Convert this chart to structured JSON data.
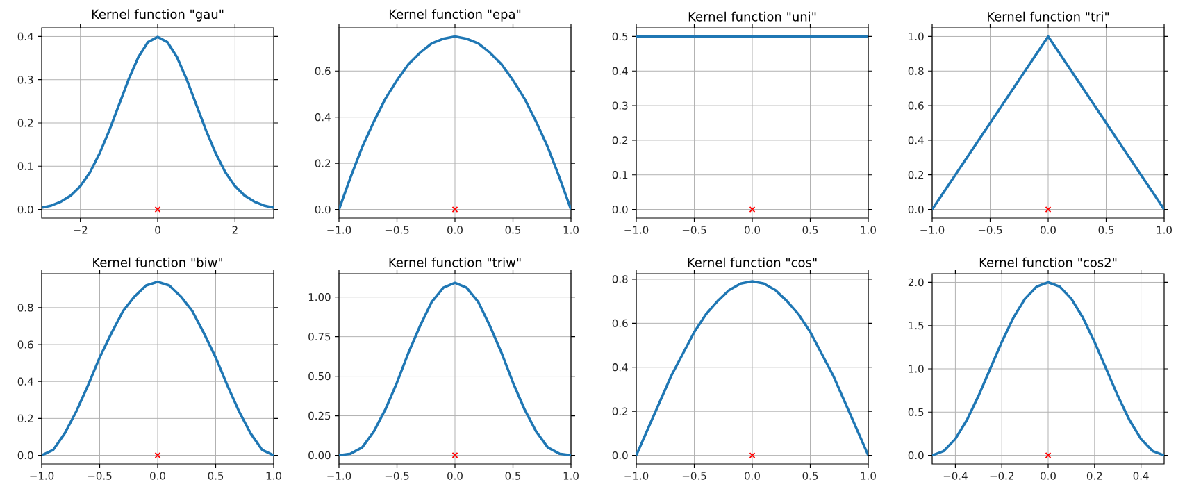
{
  "chart_data": [
    {
      "type": "line",
      "title": "Kernel function \"gau\"",
      "xlim": [
        -3,
        3
      ],
      "ylim": [
        -0.02,
        0.42
      ],
      "grid": true,
      "line_style": "solid",
      "xticks": [
        {
          "value": -2,
          "label": "−2"
        },
        {
          "value": 0,
          "label": "0"
        },
        {
          "value": 2,
          "label": "2"
        }
      ],
      "yticks": [
        {
          "value": 0,
          "label": "0.0"
        },
        {
          "value": 0.1,
          "label": "0.1"
        },
        {
          "value": 0.2,
          "label": "0.2"
        },
        {
          "value": 0.3,
          "label": "0.3"
        },
        {
          "value": 0.4,
          "label": "0.4"
        }
      ],
      "series": [
        {
          "color": "#1f77b4",
          "x": [
            -3,
            -2.75,
            -2.5,
            -2.25,
            -2,
            -1.75,
            -1.5,
            -1.25,
            -1,
            -0.75,
            -0.5,
            -0.25,
            0,
            0.25,
            0.5,
            0.75,
            1,
            1.25,
            1.5,
            1.75,
            2,
            2.25,
            2.5,
            2.75,
            3
          ],
          "values": [
            0.004,
            0.009,
            0.018,
            0.032,
            0.054,
            0.086,
            0.13,
            0.183,
            0.242,
            0.301,
            0.352,
            0.387,
            0.399,
            0.387,
            0.352,
            0.301,
            0.242,
            0.183,
            0.13,
            0.086,
            0.054,
            0.032,
            0.018,
            0.009,
            0.004
          ]
        },
        {
          "type": "scatter",
          "marker": "cross",
          "color": "#ff0000",
          "x": [
            0
          ],
          "values": [
            0
          ]
        }
      ]
    },
    {
      "type": "line",
      "title": "Kernel function \"epa\"",
      "xlim": [
        -1,
        1
      ],
      "ylim": [
        -0.0375,
        0.7875
      ],
      "grid": true,
      "line_style": "solid",
      "xticks": [
        {
          "value": -1,
          "label": "−1.0"
        },
        {
          "value": -0.5,
          "label": "−0.5"
        },
        {
          "value": 0,
          "label": "0.0"
        },
        {
          "value": 0.5,
          "label": "0.5"
        },
        {
          "value": 1,
          "label": "1.0"
        }
      ],
      "yticks": [
        {
          "value": 0,
          "label": "0.0"
        },
        {
          "value": 0.2,
          "label": "0.2"
        },
        {
          "value": 0.4,
          "label": "0.4"
        },
        {
          "value": 0.6,
          "label": "0.6"
        }
      ],
      "series": [
        {
          "color": "#1f77b4",
          "x": [
            -1,
            -0.9,
            -0.8,
            -0.7,
            -0.6,
            -0.5,
            -0.4,
            -0.3,
            -0.2,
            -0.1,
            0,
            0.1,
            0.2,
            0.3,
            0.4,
            0.5,
            0.6,
            0.7,
            0.8,
            0.9,
            1
          ],
          "values": [
            0,
            0.14,
            0.27,
            0.38,
            0.48,
            0.56,
            0.63,
            0.68,
            0.72,
            0.74,
            0.75,
            0.74,
            0.72,
            0.68,
            0.63,
            0.56,
            0.48,
            0.38,
            0.27,
            0.14,
            0
          ]
        },
        {
          "type": "scatter",
          "marker": "cross",
          "color": "#ff0000",
          "x": [
            0
          ],
          "values": [
            0
          ]
        }
      ]
    },
    {
      "type": "line",
      "title": "Kernel function \"uni\"",
      "xlim": [
        -1,
        1
      ],
      "ylim": [
        -0.025,
        0.525
      ],
      "grid": true,
      "line_style": "solid",
      "xticks": [
        {
          "value": -1,
          "label": "−1.0"
        },
        {
          "value": -0.5,
          "label": "−0.5"
        },
        {
          "value": 0,
          "label": "0.0"
        },
        {
          "value": 0.5,
          "label": "0.5"
        },
        {
          "value": 1,
          "label": "1.0"
        }
      ],
      "yticks": [
        {
          "value": 0,
          "label": "0.0"
        },
        {
          "value": 0.1,
          "label": "0.1"
        },
        {
          "value": 0.2,
          "label": "0.2"
        },
        {
          "value": 0.3,
          "label": "0.3"
        },
        {
          "value": 0.4,
          "label": "0.4"
        },
        {
          "value": 0.5,
          "label": "0.5"
        }
      ],
      "series": [
        {
          "color": "#1f77b4",
          "x": [
            -1,
            1
          ],
          "values": [
            0.5,
            0.5
          ]
        },
        {
          "type": "scatter",
          "marker": "cross",
          "color": "#ff0000",
          "x": [
            0
          ],
          "values": [
            0
          ]
        }
      ]
    },
    {
      "type": "line",
      "title": "Kernel function \"tri\"",
      "xlim": [
        -1,
        1
      ],
      "ylim": [
        -0.05,
        1.05
      ],
      "grid": true,
      "line_style": "solid",
      "xticks": [
        {
          "value": -1,
          "label": "−1.0"
        },
        {
          "value": -0.5,
          "label": "−0.5"
        },
        {
          "value": 0,
          "label": "0.0"
        },
        {
          "value": 0.5,
          "label": "0.5"
        },
        {
          "value": 1,
          "label": "1.0"
        }
      ],
      "yticks": [
        {
          "value": 0,
          "label": "0.0"
        },
        {
          "value": 0.2,
          "label": "0.2"
        },
        {
          "value": 0.4,
          "label": "0.4"
        },
        {
          "value": 0.6,
          "label": "0.6"
        },
        {
          "value": 0.8,
          "label": "0.8"
        },
        {
          "value": 1,
          "label": "1.0"
        }
      ],
      "series": [
        {
          "color": "#1f77b4",
          "x": [
            -1,
            0,
            1
          ],
          "values": [
            0,
            1,
            0
          ]
        },
        {
          "type": "scatter",
          "marker": "cross",
          "color": "#ff0000",
          "x": [
            0
          ],
          "values": [
            0
          ]
        }
      ]
    },
    {
      "type": "line",
      "title": "Kernel function \"biw\"",
      "xlim": [
        -1,
        1
      ],
      "ylim": [
        -0.047,
        0.984
      ],
      "grid": true,
      "line_style": "solid",
      "xticks": [
        {
          "value": -1,
          "label": "−1.0"
        },
        {
          "value": -0.5,
          "label": "−0.5"
        },
        {
          "value": 0,
          "label": "0.0"
        },
        {
          "value": 0.5,
          "label": "0.5"
        },
        {
          "value": 1,
          "label": "1.0"
        }
      ],
      "yticks": [
        {
          "value": 0,
          "label": "0.0"
        },
        {
          "value": 0.2,
          "label": "0.2"
        },
        {
          "value": 0.4,
          "label": "0.4"
        },
        {
          "value": 0.6,
          "label": "0.6"
        },
        {
          "value": 0.8,
          "label": "0.8"
        }
      ],
      "series": [
        {
          "color": "#1f77b4",
          "x": [
            -1,
            -0.9,
            -0.8,
            -0.7,
            -0.6,
            -0.5,
            -0.4,
            -0.3,
            -0.2,
            -0.1,
            0,
            0.1,
            0.2,
            0.3,
            0.4,
            0.5,
            0.6,
            0.7,
            0.8,
            0.9,
            1
          ],
          "values": [
            0,
            0.03,
            0.12,
            0.24,
            0.38,
            0.53,
            0.66,
            0.78,
            0.86,
            0.92,
            0.94,
            0.92,
            0.86,
            0.78,
            0.66,
            0.53,
            0.38,
            0.24,
            0.12,
            0.03,
            0
          ]
        },
        {
          "type": "scatter",
          "marker": "cross",
          "color": "#ff0000",
          "x": [
            0
          ],
          "values": [
            0
          ]
        }
      ]
    },
    {
      "type": "line",
      "title": "Kernel function \"triw\"",
      "xlim": [
        -1,
        1
      ],
      "ylim": [
        -0.055,
        1.148
      ],
      "grid": true,
      "line_style": "solid",
      "xticks": [
        {
          "value": -1,
          "label": "−1.0"
        },
        {
          "value": -0.5,
          "label": "−0.5"
        },
        {
          "value": 0,
          "label": "0.0"
        },
        {
          "value": 0.5,
          "label": "0.5"
        },
        {
          "value": 1,
          "label": "1.0"
        }
      ],
      "yticks": [
        {
          "value": 0,
          "label": "0.00"
        },
        {
          "value": 0.25,
          "label": "0.25"
        },
        {
          "value": 0.5,
          "label": "0.50"
        },
        {
          "value": 0.75,
          "label": "0.75"
        },
        {
          "value": 1,
          "label": "1.00"
        }
      ],
      "series": [
        {
          "color": "#1f77b4",
          "x": [
            -1,
            -0.9,
            -0.8,
            -0.7,
            -0.6,
            -0.5,
            -0.4,
            -0.3,
            -0.2,
            -0.1,
            0,
            0.1,
            0.2,
            0.3,
            0.4,
            0.5,
            0.6,
            0.7,
            0.8,
            0.9,
            1
          ],
          "values": [
            0,
            0.01,
            0.05,
            0.15,
            0.29,
            0.46,
            0.65,
            0.82,
            0.97,
            1.06,
            1.09,
            1.06,
            0.97,
            0.82,
            0.65,
            0.46,
            0.29,
            0.15,
            0.05,
            0.01,
            0
          ]
        },
        {
          "type": "scatter",
          "marker": "cross",
          "color": "#ff0000",
          "x": [
            0
          ],
          "values": [
            0
          ]
        }
      ]
    },
    {
      "type": "line",
      "title": "Kernel function \"cos\"",
      "xlim": [
        -1,
        1
      ],
      "ylim": [
        -0.039,
        0.825
      ],
      "grid": true,
      "line_style": "solid",
      "xticks": [
        {
          "value": -1,
          "label": "−1.0"
        },
        {
          "value": -0.5,
          "label": "−0.5"
        },
        {
          "value": 0,
          "label": "0.0"
        },
        {
          "value": 0.5,
          "label": "0.5"
        },
        {
          "value": 1,
          "label": "1.0"
        }
      ],
      "yticks": [
        {
          "value": 0,
          "label": "0.0"
        },
        {
          "value": 0.2,
          "label": "0.2"
        },
        {
          "value": 0.4,
          "label": "0.4"
        },
        {
          "value": 0.6,
          "label": "0.6"
        },
        {
          "value": 0.8,
          "label": "0.8"
        }
      ],
      "series": [
        {
          "color": "#1f77b4",
          "x": [
            -1,
            -0.9,
            -0.8,
            -0.7,
            -0.6,
            -0.5,
            -0.4,
            -0.3,
            -0.2,
            -0.1,
            0,
            0.1,
            0.2,
            0.3,
            0.4,
            0.5,
            0.6,
            0.7,
            0.8,
            0.9,
            1
          ],
          "values": [
            0,
            0.12,
            0.24,
            0.36,
            0.46,
            0.56,
            0.64,
            0.7,
            0.75,
            0.78,
            0.79,
            0.78,
            0.75,
            0.7,
            0.64,
            0.56,
            0.46,
            0.36,
            0.24,
            0.12,
            0
          ]
        },
        {
          "type": "scatter",
          "marker": "cross",
          "color": "#ff0000",
          "x": [
            0
          ],
          "values": [
            0
          ]
        }
      ]
    },
    {
      "type": "line",
      "title": "Kernel function \"cos2\"",
      "xlim": [
        -0.5,
        0.5
      ],
      "ylim": [
        -0.1,
        2.1
      ],
      "grid": true,
      "line_style": "solid",
      "xticks": [
        {
          "value": -0.4,
          "label": "−0.4"
        },
        {
          "value": -0.2,
          "label": "−0.2"
        },
        {
          "value": 0,
          "label": "0.0"
        },
        {
          "value": 0.2,
          "label": "0.2"
        },
        {
          "value": 0.4,
          "label": "0.4"
        }
      ],
      "yticks": [
        {
          "value": 0,
          "label": "0.0"
        },
        {
          "value": 0.5,
          "label": "0.5"
        },
        {
          "value": 1,
          "label": "1.0"
        },
        {
          "value": 1.5,
          "label": "1.5"
        },
        {
          "value": 2,
          "label": "2.0"
        }
      ],
      "series": [
        {
          "color": "#1f77b4",
          "x": [
            -0.5,
            -0.45,
            -0.4,
            -0.35,
            -0.3,
            -0.25,
            -0.2,
            -0.15,
            -0.1,
            -0.05,
            0,
            0.05,
            0.1,
            0.15,
            0.2,
            0.25,
            0.3,
            0.35,
            0.4,
            0.45,
            0.5
          ],
          "values": [
            0,
            0.05,
            0.19,
            0.41,
            0.69,
            1,
            1.31,
            1.59,
            1.81,
            1.95,
            2,
            1.95,
            1.81,
            1.59,
            1.31,
            1,
            0.69,
            0.41,
            0.19,
            0.05,
            0
          ]
        },
        {
          "type": "scatter",
          "marker": "cross",
          "color": "#ff0000",
          "x": [
            0
          ],
          "values": [
            0
          ]
        }
      ]
    }
  ]
}
